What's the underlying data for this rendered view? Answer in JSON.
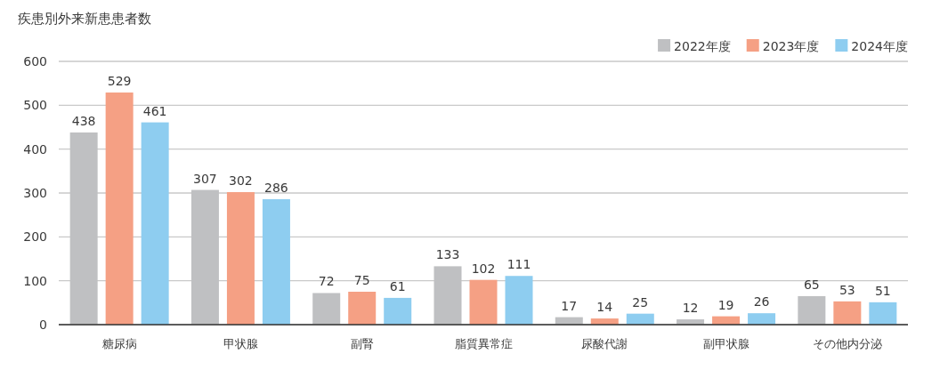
{
  "chart_data": {
    "type": "bar",
    "title": "疾患別外来新患患者数",
    "categories": [
      "糖尿病",
      "甲状腺",
      "副腎",
      "脂質異常症",
      "尿酸代謝",
      "副甲状腺",
      "その他内分泌"
    ],
    "series": [
      {
        "name": "2022年度",
        "color": "#bfc0c2",
        "values": [
          438,
          307,
          72,
          133,
          17,
          12,
          65
        ]
      },
      {
        "name": "2023年度",
        "color": "#f5a084",
        "values": [
          529,
          302,
          75,
          102,
          14,
          19,
          53
        ]
      },
      {
        "name": "2024年度",
        "color": "#8ecdf0",
        "values": [
          461,
          286,
          61,
          111,
          25,
          26,
          51
        ]
      }
    ],
    "ylim": [
      0,
      600
    ],
    "yticks": [
      0,
      100,
      200,
      300,
      400,
      500,
      600
    ],
    "grid": "y",
    "legend": "top right",
    "data_labels": true
  }
}
